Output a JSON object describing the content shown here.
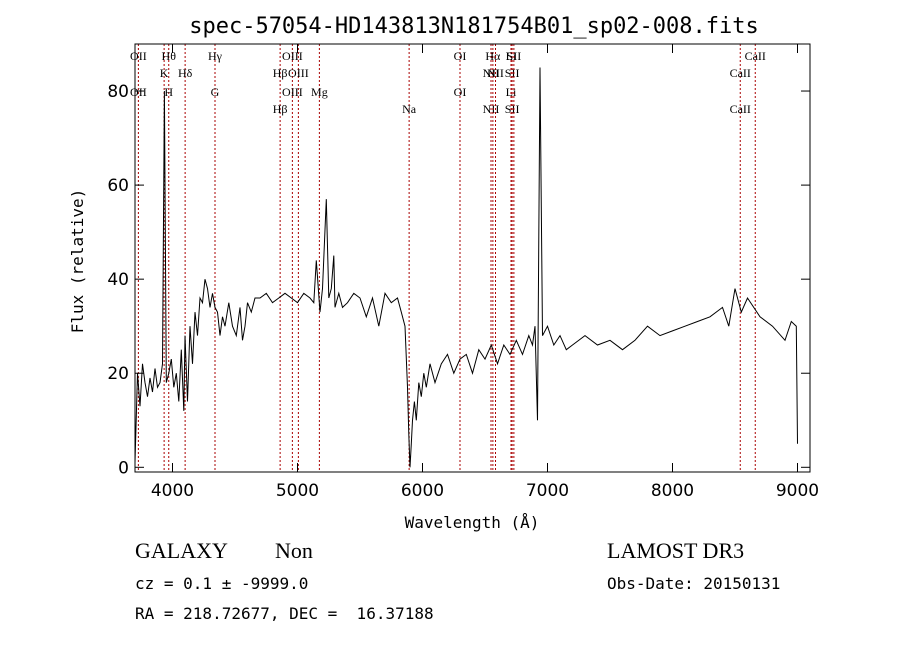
{
  "chart_data": {
    "type": "line",
    "title": "spec-57054-HD143813N181754B01_sp02-008.fits",
    "xlabel": "Wavelength (Å)",
    "ylabel": "Flux (relative)",
    "xlim": [
      3700,
      9100
    ],
    "ylim": [
      -1,
      90
    ],
    "xticks": [
      4000,
      5000,
      6000,
      7000,
      8000,
      9000
    ],
    "yticks": [
      0,
      20,
      40,
      60,
      80
    ],
    "grid": false,
    "line_color": "#000000",
    "marker_color": "#aa0000",
    "series": [
      {
        "x": [
          3700,
          3720,
          3740,
          3760,
          3780,
          3800,
          3820,
          3840,
          3860,
          3880,
          3900,
          3920,
          3935,
          3950,
          3970,
          3990,
          4010,
          4030,
          4050,
          4070,
          4090,
          4100,
          4120,
          4140,
          4160,
          4180,
          4200,
          4220,
          4240,
          4260,
          4280,
          4300,
          4320,
          4340,
          4360,
          4380,
          4400,
          4420,
          4450,
          4480,
          4510,
          4540,
          4560,
          4580,
          4600,
          4630,
          4660,
          4700,
          4750,
          4800,
          4850,
          4900,
          4950,
          5000,
          5050,
          5100,
          5130,
          5150,
          5180,
          5200,
          5230,
          5250,
          5270,
          5290,
          5300,
          5330,
          5360,
          5400,
          5450,
          5500,
          5550,
          5600,
          5650,
          5700,
          5750,
          5800,
          5830,
          5860,
          5880,
          5890,
          5900,
          5910,
          5920,
          5935,
          5950,
          5970,
          5990,
          6010,
          6030,
          6060,
          6100,
          6150,
          6200,
          6250,
          6300,
          6350,
          6400,
          6450,
          6500,
          6550,
          6600,
          6650,
          6700,
          6750,
          6800,
          6850,
          6880,
          6900,
          6920,
          6940,
          6960,
          7000,
          7050,
          7100,
          7150,
          7200,
          7300,
          7400,
          7500,
          7600,
          7700,
          7800,
          7900,
          8000,
          8100,
          8200,
          8300,
          8400,
          8450,
          8500,
          8550,
          8600,
          8700,
          8800,
          8900,
          8950,
          8990,
          9000
        ],
        "y": [
          1,
          20,
          13,
          22,
          18,
          15,
          19,
          16,
          21,
          17,
          18,
          22,
          80,
          18,
          20,
          23,
          17,
          20,
          14,
          25,
          12,
          28,
          14,
          30,
          22,
          33,
          28,
          36,
          35,
          40,
          38,
          34,
          37,
          34,
          33,
          28,
          32,
          30,
          35,
          30,
          28,
          34,
          27,
          30,
          35,
          33,
          36,
          36,
          37,
          35,
          36,
          37,
          36,
          35,
          37,
          36,
          35,
          44,
          33,
          38,
          57,
          36,
          38,
          45,
          34,
          37,
          34,
          35,
          37,
          36,
          32,
          36,
          30,
          37,
          35,
          36,
          33,
          30,
          17,
          7,
          0,
          5,
          10,
          14,
          10,
          18,
          15,
          20,
          17,
          22,
          18,
          22,
          24,
          20,
          23,
          24,
          20,
          25,
          23,
          26,
          22,
          26,
          24,
          27,
          24,
          28,
          26,
          30,
          10,
          85,
          28,
          30,
          26,
          28,
          25,
          26,
          28,
          26,
          27,
          25,
          27,
          30,
          28,
          29,
          30,
          31,
          32,
          34,
          30,
          38,
          33,
          36,
          32,
          30,
          27,
          31,
          30,
          5
        ]
      }
    ],
    "line_markers": [
      {
        "wavelength": 3727,
        "top": "OII",
        "bottom": "OII"
      },
      {
        "wavelength": 3933,
        "top": "K",
        "bottom": ""
      },
      {
        "wavelength": 3970,
        "top": "Hθ",
        "bottom": "H"
      },
      {
        "wavelength": 4101,
        "top": "Hδ",
        "bottom": ""
      },
      {
        "wavelength": 4340,
        "top": "Hγ",
        "bottom": "G"
      },
      {
        "wavelength": 4861,
        "top": "Hβ",
        "bottom": "Hβ"
      },
      {
        "wavelength": 4959,
        "top": "OIII",
        "bottom": "OIII"
      },
      {
        "wavelength": 5007,
        "top": "OIII",
        "bottom": ""
      },
      {
        "wavelength": 5175,
        "top": "",
        "bottom": "Mg"
      },
      {
        "wavelength": 5893,
        "top": "",
        "bottom": "Na"
      },
      {
        "wavelength": 6300,
        "top": "OI",
        "bottom": "OI"
      },
      {
        "wavelength": 6548,
        "top": "NII",
        "bottom": "NII"
      },
      {
        "wavelength": 6563,
        "top": "Hα",
        "bottom": ""
      },
      {
        "wavelength": 6584,
        "top": "NII",
        "bottom": ""
      },
      {
        "wavelength": 6708,
        "top": "Li",
        "bottom": "Li"
      },
      {
        "wavelength": 6717,
        "top": "SII",
        "bottom": "SII"
      },
      {
        "wavelength": 6731,
        "top": "SII",
        "bottom": ""
      },
      {
        "wavelength": 8542,
        "top": "CaII",
        "bottom": "CaII"
      },
      {
        "wavelength": 8662,
        "top": "CaII",
        "bottom": ""
      }
    ]
  },
  "footer": {
    "classification": "GALAXY",
    "subclass": "Non",
    "redshift_line": "cz = 0.1 ± -9999.0",
    "coordinates_line": "RA = 218.72677, DEC =  16.37188",
    "survey": "LAMOST DR3",
    "obs_date_line": "Obs-Date: 20150131"
  }
}
